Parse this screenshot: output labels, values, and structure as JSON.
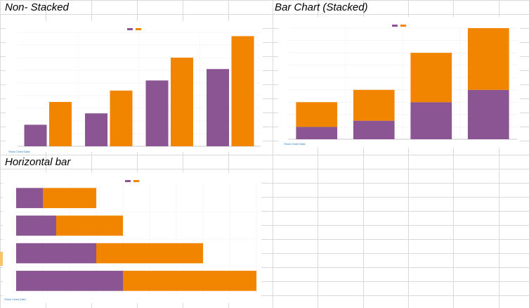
{
  "sheet": {
    "labels": {
      "non_stacked": "Non- Stacked",
      "stacked": "Bar Chart (Stacked)",
      "horizontal": "Horizontal bar"
    },
    "colors": {
      "grid_line": "#d9d9d9",
      "highlight_cell": "#f6c56a"
    }
  },
  "chart_data": [
    {
      "type": "bar",
      "mode": "grouped",
      "title": "",
      "categories": [
        "",
        "",
        "",
        ""
      ],
      "series": [
        {
          "name": "",
          "color": "#8b5593",
          "values": [
            17,
            26,
            52,
            61
          ]
        },
        {
          "name": "",
          "color": "#f28500",
          "values": [
            35,
            44,
            70,
            87
          ]
        }
      ],
      "ylim": [
        0,
        90
      ],
      "grid": true,
      "legend": "top-center",
      "link": "Show Chart Data"
    },
    {
      "type": "bar",
      "mode": "stacked",
      "title": "",
      "categories": [
        "",
        "",
        "",
        ""
      ],
      "series": [
        {
          "name": "",
          "color": "#8b5593",
          "values": [
            10,
            15,
            30,
            40
          ]
        },
        {
          "name": "",
          "color": "#f28500",
          "values": [
            20,
            25,
            40,
            50
          ]
        }
      ],
      "ylim": [
        0,
        90
      ],
      "grid": true,
      "legend": "top-center",
      "link": "Show Chart Data"
    },
    {
      "type": "bar",
      "mode": "stacked-horizontal",
      "title": "",
      "categories": [
        "",
        "",
        "",
        ""
      ],
      "series": [
        {
          "name": "",
          "color": "#8b5593",
          "values": [
            10,
            15,
            30,
            40
          ]
        },
        {
          "name": "",
          "color": "#f28500",
          "values": [
            20,
            25,
            40,
            50
          ]
        }
      ],
      "xlim": [
        0,
        90
      ],
      "grid": true,
      "legend": "top-center",
      "link": "Show Chart Data"
    }
  ]
}
